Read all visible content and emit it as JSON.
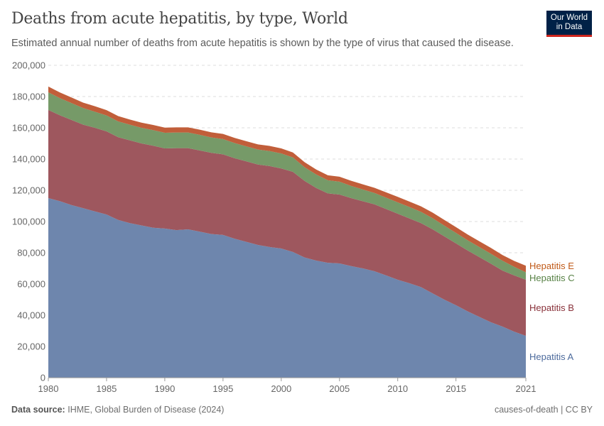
{
  "header": {
    "title": "Deaths from acute hepatitis, by type, World",
    "subtitle": "Estimated annual number of deaths from acute hepatitis is shown by the type of virus that caused the disease.",
    "logo_line1": "Our World",
    "logo_line2": "in Data"
  },
  "footer": {
    "source_label": "Data source:",
    "source": "IHME, Global Burden of Disease (2024)",
    "right": "causes-of-death | CC BY"
  },
  "chart_data": {
    "type": "area",
    "stacked": true,
    "grid": "horizontal dashed",
    "legend": "right, inline labels",
    "ylim": [
      0,
      200000
    ],
    "yticks": [
      "0",
      "20,000",
      "40,000",
      "60,000",
      "80,000",
      "100,000",
      "120,000",
      "140,000",
      "160,000",
      "180,000",
      "200,000"
    ],
    "xticks": [
      "1980",
      "1985",
      "1990",
      "1995",
      "2000",
      "2005",
      "2010",
      "2015",
      "2021"
    ],
    "x": [
      1980,
      1981,
      1982,
      1983,
      1984,
      1985,
      1986,
      1987,
      1988,
      1989,
      1990,
      1991,
      1992,
      1993,
      1994,
      1995,
      1996,
      1997,
      1998,
      1999,
      2000,
      2001,
      2002,
      2003,
      2004,
      2005,
      2006,
      2007,
      2008,
      2009,
      2010,
      2011,
      2012,
      2013,
      2014,
      2015,
      2016,
      2017,
      2018,
      2019,
      2020,
      2021
    ],
    "series": [
      {
        "name": "Hepatitis A",
        "color": "#6e86ad",
        "label_color": "#4c6a9c",
        "values": [
          115000,
          113000,
          110500,
          108500,
          106500,
          104500,
          101000,
          99000,
          97500,
          96000,
          95500,
          94500,
          95000,
          93500,
          92000,
          91400,
          89000,
          87000,
          85000,
          83700,
          82700,
          80500,
          77000,
          75000,
          73600,
          73200,
          71500,
          70000,
          68200,
          65500,
          62700,
          60500,
          58000,
          54000,
          50000,
          46400,
          42500,
          39000,
          35500,
          32700,
          29500,
          26800
        ]
      },
      {
        "name": "Hepatitis B",
        "color": "#9e575e",
        "label_color": "#883039",
        "values": [
          56400,
          55000,
          54500,
          53500,
          53500,
          53200,
          53000,
          53000,
          52500,
          52500,
          51300,
          52500,
          52000,
          52000,
          52000,
          51600,
          51500,
          51500,
          51500,
          51800,
          51300,
          51300,
          49000,
          46500,
          44400,
          44100,
          43500,
          43000,
          42800,
          42500,
          42300,
          41500,
          41000,
          41000,
          40500,
          39600,
          39000,
          38300,
          37500,
          35900,
          36000,
          35900
        ]
      },
      {
        "name": "Hepatitis C",
        "color": "#769a68",
        "label_color": "#578145",
        "values": [
          11300,
          11000,
          10800,
          10600,
          10300,
          10200,
          10100,
          10000,
          10000,
          10000,
          10000,
          10000,
          10000,
          10000,
          9800,
          9800,
          9700,
          9600,
          9600,
          9600,
          9600,
          9200,
          8800,
          8600,
          8400,
          8200,
          7800,
          7500,
          7300,
          7300,
          7300,
          7300,
          7200,
          7100,
          6900,
          6700,
          6500,
          6400,
          6400,
          6300,
          5500,
          4800
        ]
      },
      {
        "name": "Hepatitis E",
        "color": "#c15e3a",
        "label_color": "#c05917",
        "values": [
          3700,
          3600,
          3600,
          3500,
          3500,
          3400,
          3400,
          3300,
          3300,
          3300,
          3300,
          3300,
          3300,
          3300,
          3300,
          3300,
          3300,
          3300,
          3300,
          3300,
          3200,
          3200,
          3200,
          3200,
          3200,
          3200,
          3300,
          3300,
          3300,
          3400,
          3500,
          3500,
          3500,
          3600,
          3600,
          3700,
          3700,
          3700,
          3700,
          3600,
          3800,
          4200
        ]
      }
    ]
  }
}
